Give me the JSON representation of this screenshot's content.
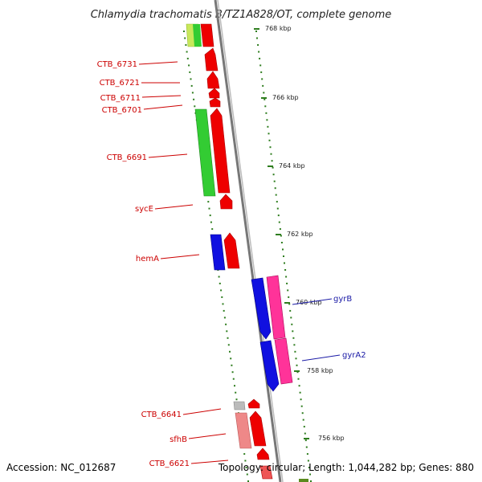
{
  "header": {
    "title": "Chlamydia trachomatis B/TZ1A828/OT, complete genome"
  },
  "footer": {
    "accession": "Accession: NC_012687",
    "summary": "Topology: circular; Length: 1,044,282 bp; Genes: 880"
  },
  "colors": {
    "backbone": "#888888",
    "tick": "#2e7d1e",
    "label_red": "#cc0000",
    "label_blue": "#1a1aa6",
    "red": "#ee0000",
    "green": "#33cc33",
    "blue": "#1010e0",
    "magenta": "#ff33aa",
    "pink": "#ee8888",
    "grey": "#bbbbbb",
    "yellowgreen": "#ccee55"
  },
  "scale": {
    "ticks": [
      {
        "label": "768 kbp"
      },
      {
        "label": "766 kbp"
      },
      {
        "label": "764 kbp"
      },
      {
        "label": "762 kbp"
      },
      {
        "label": "760 kbp"
      },
      {
        "label": "758 kbp"
      },
      {
        "label": "756 kbp"
      }
    ]
  },
  "genes": {
    "left": [
      {
        "name": "CTB_6731"
      },
      {
        "name": "CTB_6721"
      },
      {
        "name": "CTB_6711"
      },
      {
        "name": "CTB_6701"
      },
      {
        "name": "CTB_6691"
      },
      {
        "name": "sycE"
      },
      {
        "name": "hemA"
      },
      {
        "name": "CTB_6641"
      },
      {
        "name": "sfhB"
      },
      {
        "name": "CTB_6621"
      }
    ],
    "right": [
      {
        "name": "gyrB"
      },
      {
        "name": "gyrA2"
      }
    ]
  }
}
